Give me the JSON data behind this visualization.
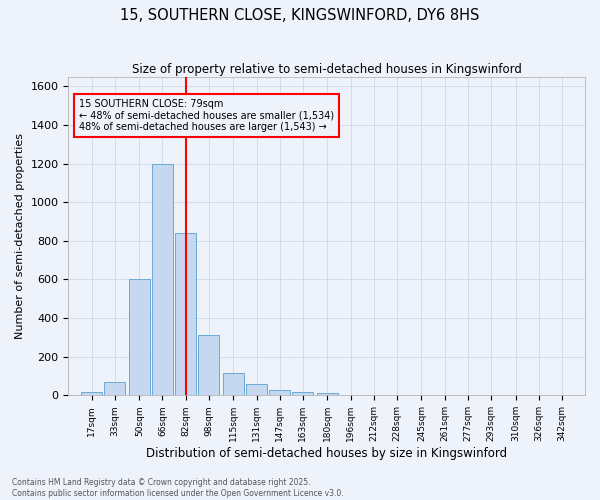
{
  "title": "15, SOUTHERN CLOSE, KINGSWINFORD, DY6 8HS",
  "subtitle": "Size of property relative to semi-detached houses in Kingswinford",
  "xlabel": "Distribution of semi-detached houses by size in Kingswinford",
  "ylabel": "Number of semi-detached properties",
  "bins": [
    "17sqm",
    "33sqm",
    "50sqm",
    "66sqm",
    "82sqm",
    "98sqm",
    "115sqm",
    "131sqm",
    "147sqm",
    "163sqm",
    "180sqm",
    "196sqm",
    "212sqm",
    "228sqm",
    "245sqm",
    "261sqm",
    "277sqm",
    "293sqm",
    "310sqm",
    "326sqm",
    "342sqm"
  ],
  "values": [
    15,
    70,
    600,
    1200,
    840,
    315,
    115,
    60,
    30,
    15,
    10,
    0,
    0,
    0,
    0,
    0,
    0,
    0,
    0,
    0,
    0
  ],
  "bar_color": "#c5d8f0",
  "bar_edge_color": "#6aaad4",
  "grid_color": "#d0d8e8",
  "bg_color": "#eef2fb",
  "vline_color": "red",
  "annotation_title": "15 SOUTHERN CLOSE: 79sqm",
  "annotation_line1": "← 48% of semi-detached houses are smaller (1,534)",
  "annotation_line2": "48% of semi-detached houses are larger (1,543) →",
  "annotation_box_edge_color": "red",
  "footer_line1": "Contains HM Land Registry data © Crown copyright and database right 2025.",
  "footer_line2": "Contains public sector information licensed under the Open Government Licence v3.0.",
  "ylim": [
    0,
    1650
  ],
  "yticks": [
    0,
    200,
    400,
    600,
    800,
    1000,
    1200,
    1400,
    1600
  ]
}
